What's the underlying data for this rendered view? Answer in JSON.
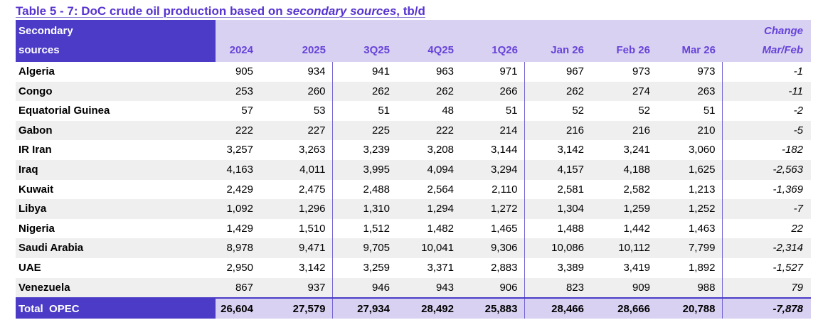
{
  "title": {
    "prefix": "Table 5 - 7: DoC crude oil production based on ",
    "emphasis": "secondary sources",
    "suffix": ", tb/d"
  },
  "table": {
    "header": {
      "label_line1": "Secondary",
      "label_line2": "sources",
      "columns": [
        "2024",
        "2025",
        "3Q25",
        "4Q25",
        "1Q26",
        "Jan 26",
        "Feb 26",
        "Mar 26"
      ],
      "change_line1": "Change",
      "change_line2": "Mar/Feb"
    },
    "rows": [
      {
        "label": "Algeria",
        "values": [
          "905",
          "934",
          "941",
          "963",
          "971",
          "967",
          "973",
          "973"
        ],
        "change": "-1"
      },
      {
        "label": "Congo",
        "values": [
          "253",
          "260",
          "262",
          "262",
          "266",
          "262",
          "274",
          "263"
        ],
        "change": "-11"
      },
      {
        "label": "Equatorial Guinea",
        "values": [
          "57",
          "53",
          "51",
          "48",
          "51",
          "52",
          "52",
          "51"
        ],
        "change": "-2"
      },
      {
        "label": "Gabon",
        "values": [
          "222",
          "227",
          "225",
          "222",
          "214",
          "216",
          "216",
          "210"
        ],
        "change": "-5"
      },
      {
        "label": "IR Iran",
        "values": [
          "3,257",
          "3,263",
          "3,239",
          "3,208",
          "3,144",
          "3,142",
          "3,241",
          "3,060"
        ],
        "change": "-182"
      },
      {
        "label": "Iraq",
        "values": [
          "4,163",
          "4,011",
          "3,995",
          "4,094",
          "3,294",
          "4,157",
          "4,188",
          "1,625"
        ],
        "change": "-2,563"
      },
      {
        "label": "Kuwait",
        "values": [
          "2,429",
          "2,475",
          "2,488",
          "2,564",
          "2,110",
          "2,581",
          "2,582",
          "1,213"
        ],
        "change": "-1,369"
      },
      {
        "label": "Libya",
        "values": [
          "1,092",
          "1,296",
          "1,310",
          "1,294",
          "1,272",
          "1,304",
          "1,259",
          "1,252"
        ],
        "change": "-7"
      },
      {
        "label": "Nigeria",
        "values": [
          "1,429",
          "1,510",
          "1,512",
          "1,482",
          "1,465",
          "1,488",
          "1,442",
          "1,463"
        ],
        "change": "22"
      },
      {
        "label": "Saudi Arabia",
        "values": [
          "8,978",
          "9,471",
          "9,705",
          "10,041",
          "9,306",
          "10,086",
          "10,112",
          "7,799"
        ],
        "change": "-2,314"
      },
      {
        "label": "UAE",
        "values": [
          "2,950",
          "3,142",
          "3,259",
          "3,371",
          "2,883",
          "3,389",
          "3,419",
          "1,892"
        ],
        "change": "-1,527"
      },
      {
        "label": "Venezuela",
        "values": [
          "867",
          "937",
          "946",
          "943",
          "906",
          "823",
          "909",
          "988"
        ],
        "change": "79"
      }
    ],
    "total": {
      "label": "Total  OPEC",
      "values": [
        "26,604",
        "27,579",
        "27,934",
        "28,492",
        "25,883",
        "28,466",
        "28,666",
        "20,788"
      ],
      "change": "-7,878"
    }
  },
  "colors": {
    "title_text": "#5733D0",
    "header_dark_bg": "#4B3BC7",
    "header_light_bg": "#D8D1F2",
    "header_text": "#6743D9",
    "stripe_gray": "#EFEFEF",
    "separator_line": "#7163D2"
  }
}
